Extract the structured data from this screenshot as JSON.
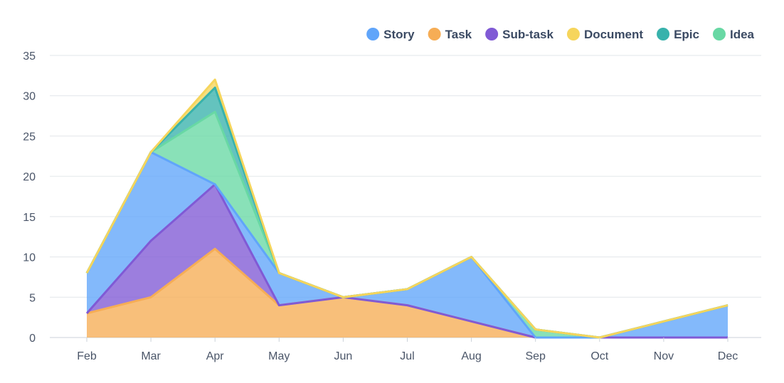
{
  "chart_data": {
    "type": "area",
    "stacked": true,
    "title": "",
    "xlabel": "",
    "ylabel": "",
    "categories": [
      "Feb",
      "Mar",
      "Apr",
      "May",
      "Jun",
      "Jul",
      "Aug",
      "Sep",
      "Oct",
      "Nov",
      "Dec"
    ],
    "ylim": [
      0,
      35
    ],
    "yticks": [
      0,
      5,
      10,
      15,
      20,
      25,
      30,
      35
    ],
    "grid": true,
    "legend_position": "top-right",
    "series": [
      {
        "name": "Task",
        "color": "#f6ad55",
        "values": [
          3,
          5,
          11,
          4,
          5,
          4,
          2,
          0,
          0,
          0,
          0
        ]
      },
      {
        "name": "Sub-task",
        "color": "#805ad5",
        "values": [
          0,
          7,
          8,
          0,
          0,
          0,
          0,
          0,
          0,
          0,
          0
        ]
      },
      {
        "name": "Story",
        "color": "#60a5fa",
        "values": [
          5,
          11,
          0,
          4,
          0,
          2,
          8,
          0,
          0,
          2,
          4
        ]
      },
      {
        "name": "Idea",
        "color": "#68d8a4",
        "values": [
          0,
          0,
          9,
          0,
          0,
          0,
          0,
          1,
          0,
          0,
          0
        ]
      },
      {
        "name": "Epic",
        "color": "#38b2ac",
        "values": [
          0,
          0,
          3,
          0,
          0,
          0,
          0,
          0,
          0,
          0,
          0
        ]
      },
      {
        "name": "Document",
        "color": "#f6d55c",
        "values": [
          0,
          0,
          1,
          0,
          0,
          0,
          0,
          0,
          0,
          0,
          0
        ]
      }
    ],
    "legend": [
      {
        "name": "Story",
        "color": "#60a5fa"
      },
      {
        "name": "Task",
        "color": "#f6ad55"
      },
      {
        "name": "Sub-task",
        "color": "#805ad5"
      },
      {
        "name": "Document",
        "color": "#f6d55c"
      },
      {
        "name": "Epic",
        "color": "#38b2ac"
      },
      {
        "name": "Idea",
        "color": "#68d8a4"
      }
    ]
  }
}
